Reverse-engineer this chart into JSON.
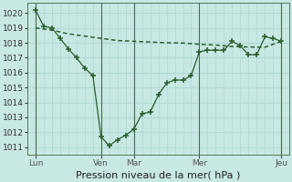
{
  "xlabel": "Pression niveau de la mer( hPa )",
  "bg_color": "#c8e8e4",
  "grid_color": "#b0d8d4",
  "line_color": "#2a5e2a",
  "ylim": [
    1010.5,
    1020.7
  ],
  "yticks": [
    1011,
    1012,
    1013,
    1014,
    1015,
    1016,
    1017,
    1018,
    1019,
    1020
  ],
  "xlim": [
    0,
    32
  ],
  "day_positions": [
    1,
    9,
    13,
    21,
    31
  ],
  "day_labels": [
    "Lun",
    "Ven",
    "Mar",
    "Mer",
    "Jeu"
  ],
  "line1_x": [
    1,
    2,
    3,
    4,
    5,
    6,
    7,
    8,
    9,
    10,
    11,
    12,
    13,
    14,
    15,
    16,
    17,
    18,
    19,
    20,
    21,
    22,
    23,
    24,
    25,
    26,
    27,
    28,
    29,
    30,
    31
  ],
  "line1_y": [
    1020.2,
    1019.1,
    1019.0,
    1018.3,
    1017.6,
    1017.0,
    1016.3,
    1015.8,
    1011.7,
    1011.1,
    1011.5,
    1011.8,
    1012.2,
    1013.25,
    1013.35,
    1014.5,
    1015.3,
    1015.5,
    1015.5,
    1015.8,
    1017.4,
    1017.5,
    1017.5,
    1017.5,
    1018.1,
    1017.8,
    1017.2,
    1017.2,
    1018.4,
    1018.3,
    1018.1
  ],
  "line2_x": [
    1,
    3,
    5,
    7,
    9,
    11,
    13,
    15,
    17,
    19,
    21,
    23,
    25,
    27,
    29,
    31
  ],
  "line2_y": [
    1019.0,
    1018.85,
    1018.6,
    1018.45,
    1018.3,
    1018.15,
    1018.1,
    1018.05,
    1018.0,
    1017.98,
    1017.9,
    1017.85,
    1017.75,
    1017.72,
    1017.7,
    1018.1
  ],
  "xlabel_fontsize": 8,
  "tick_fontsize": 6.5
}
